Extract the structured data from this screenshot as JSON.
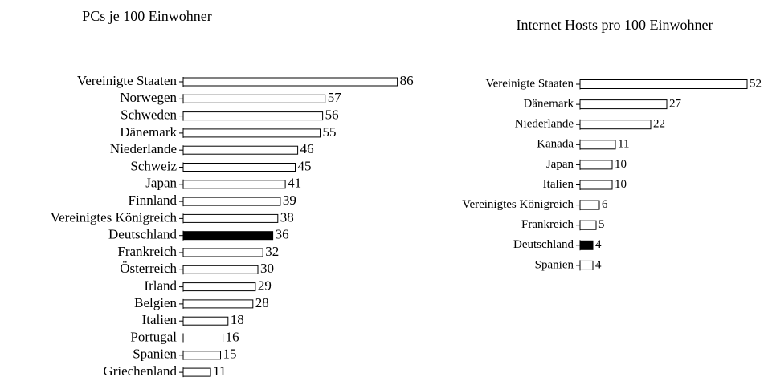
{
  "chart_data": [
    {
      "type": "bar",
      "title": "PCs je 100 Einwohner",
      "categories": [
        "Vereinigte Staaten",
        "Norwegen",
        "Schweden",
        "Dänemark",
        "Niederlande",
        "Schweiz",
        "Japan",
        "Finnland",
        "Vereinigtes Königreich",
        "Deutschland",
        "Frankreich",
        "Österreich",
        "Irland",
        "Belgien",
        "Italien",
        "Portugal",
        "Spanien",
        "Griechenland"
      ],
      "values": [
        86,
        57,
        56,
        55,
        46,
        45,
        41,
        39,
        38,
        36,
        32,
        30,
        29,
        28,
        18,
        16,
        15,
        11
      ],
      "colors": [
        "#ffffff",
        "#ffffff",
        "#ffffff",
        "#ffffff",
        "#ffffff",
        "#ffffff",
        "#ffffff",
        "#ffffff",
        "#ffffff",
        "#000000",
        "#ffffff",
        "#ffffff",
        "#ffffff",
        "#ffffff",
        "#ffffff",
        "#ffffff",
        "#ffffff",
        "#ffffff"
      ]
    },
    {
      "type": "bar",
      "title": "Internet Hosts pro 100 Einwohner",
      "categories": [
        "Vereinigte Staaten",
        "Dänemark",
        "Niederlande",
        "Kanada",
        "Japan",
        "Italien",
        "Vereinigtes Königreich",
        "Frankreich",
        "Deutschland",
        "Spanien"
      ],
      "values": [
        52,
        27,
        22,
        11,
        10,
        10,
        6,
        5,
        4,
        4
      ],
      "colors": [
        "#ffffff",
        "#ffffff",
        "#ffffff",
        "#ffffff",
        "#ffffff",
        "#ffffff",
        "#ffffff",
        "#ffffff",
        "#000000",
        "#ffffff"
      ]
    }
  ]
}
